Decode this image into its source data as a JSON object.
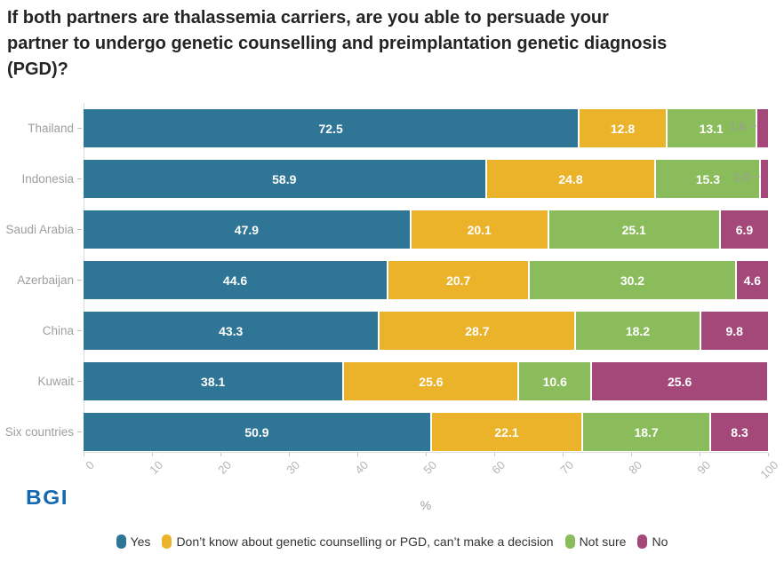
{
  "title": {
    "text": "If both partners are thalassemia carriers, are you able to persuade your partner to undergo genetic counselling and preimplantation genetic diagnosis (PGD)?",
    "lines": [
      "If both partners are thalassemia carriers, are you able to persuade your",
      "partner to undergo genetic counselling and preimplantation genetic diagnosis",
      "(PGD)?"
    ]
  },
  "chart_data": {
    "type": "bar",
    "orientation": "horizontal",
    "stacked": true,
    "categories": [
      "Thailand",
      "Indonesia",
      "Saudi Arabia",
      "Azerbaijan",
      "China",
      "Kuwait",
      "Six countries"
    ],
    "series": [
      {
        "name": "Yes",
        "color": "#2F7596",
        "values": [
          72.5,
          58.9,
          47.9,
          44.6,
          43.3,
          38.1,
          50.9
        ],
        "labels": [
          "72.5",
          "58.9",
          "47.9",
          "44.6",
          "43.3",
          "38.1",
          "50.9"
        ]
      },
      {
        "name": "Don’t know about genetic counselling or PGD, can’t make a decision",
        "color": "#EAB32A",
        "values": [
          12.8,
          24.8,
          20.1,
          20.7,
          28.7,
          25.6,
          22.1
        ],
        "labels": [
          "12.8",
          "24.8",
          "20.1",
          "20.7",
          "28.7",
          "25.6",
          "22.1"
        ]
      },
      {
        "name": "Not sure",
        "color": "#8ABC5C",
        "values": [
          13.1,
          15.3,
          25.1,
          30.2,
          18.2,
          10.6,
          18.7
        ],
        "labels": [
          "13.1",
          "15.3",
          "25.1",
          "30.2",
          "18.2",
          "10.6",
          "18.7"
        ]
      },
      {
        "name": "No",
        "color": "#A34878",
        "values": [
          1.6,
          1.0,
          6.9,
          4.6,
          9.8,
          25.6,
          8.3
        ],
        "labels": [
          "1.6",
          "1.0",
          "6.9",
          "4.6",
          "9.8",
          "25.6",
          "8.3"
        ]
      }
    ],
    "x_ticks": [
      0,
      10,
      20,
      30,
      40,
      50,
      60,
      70,
      80,
      90,
      100
    ],
    "xlim": [
      0,
      100
    ],
    "xlabel": "%",
    "legend_position": "bottom",
    "grid": false,
    "outside_label_threshold": 2
  },
  "footer": {
    "logo_text": "BGI",
    "logo_color": "#1368b1"
  }
}
